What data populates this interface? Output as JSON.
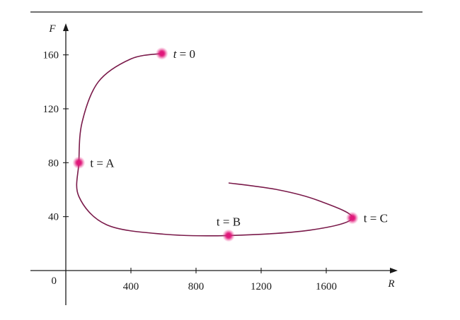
{
  "chart_data": {
    "type": "line",
    "title": "",
    "xlabel": "R",
    "ylabel": "F",
    "xlim": [
      0,
      1800
    ],
    "ylim": [
      0,
      170
    ],
    "grid": false,
    "origin_label": "0",
    "x_ticks": [
      400,
      800,
      1200,
      1600
    ],
    "y_ticks": [
      40,
      80,
      120,
      160
    ],
    "x_tick_labels": [
      "400",
      "800",
      "1200",
      "1600"
    ],
    "y_tick_labels": [
      "40",
      "80",
      "120",
      "160"
    ],
    "series": [
      {
        "color": "#7a1a4a",
        "points": [
          {
            "x": 1000,
            "y": 65
          },
          {
            "x": 1300,
            "y": 60
          },
          {
            "x": 1550,
            "y": 52
          },
          {
            "x": 1760,
            "y": 39
          },
          {
            "x": 1500,
            "y": 30
          },
          {
            "x": 1000,
            "y": 26
          },
          {
            "x": 600,
            "y": 27
          },
          {
            "x": 250,
            "y": 34
          },
          {
            "x": 80,
            "y": 55
          },
          {
            "x": 80,
            "y": 80
          },
          {
            "x": 100,
            "y": 110
          },
          {
            "x": 200,
            "y": 140
          },
          {
            "x": 400,
            "y": 157
          },
          {
            "x": 590,
            "y": 161
          }
        ]
      }
    ],
    "annotations": [
      {
        "id": "t0",
        "x": 590,
        "y": 161,
        "prefix": "t",
        "text": " = 0",
        "italic_prefix": true,
        "side": "right"
      },
      {
        "id": "tA",
        "x": 80,
        "y": 80,
        "prefix": "",
        "text": "t = A",
        "italic_prefix": false,
        "side": "right"
      },
      {
        "id": "tB",
        "x": 1000,
        "y": 26,
        "prefix": "",
        "text": "t = B",
        "italic_prefix": false,
        "side": "above"
      },
      {
        "id": "tC",
        "x": 1760,
        "y": 39,
        "prefix": "",
        "text": "t = C",
        "italic_prefix": false,
        "side": "right"
      }
    ],
    "colors": {
      "curve": "#7a1a4a",
      "marker": "#e0187a",
      "axis": "#1a1a1a"
    }
  }
}
